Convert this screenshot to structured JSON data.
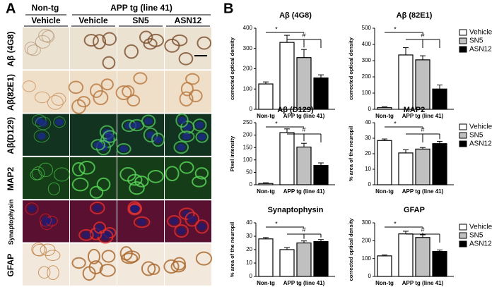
{
  "panel_a": {
    "label": "A",
    "group_headers": [
      "Non-tg",
      "APP tg (line 41)"
    ],
    "column_headers": [
      "Vehicle",
      "Vehicle",
      "SN5",
      "ASN12"
    ],
    "row_labels": [
      "Aβ (4G8)",
      "Aβ(82E1)",
      "Aβ(D129)",
      "MAP2",
      "Synaptophysin",
      "GFAP"
    ]
  },
  "panel_b": {
    "label": "B"
  },
  "chart_data": [
    {
      "type": "bar",
      "title": "Aβ (4G8)",
      "ylabel": "corrected optical density",
      "categories": [
        "Non-tg",
        "APP tg (line 41)"
      ],
      "series": [
        {
          "name": "Vehicle",
          "color": "#ffffff",
          "values": [
            125,
            330
          ],
          "errors": [
            10,
            35
          ]
        },
        {
          "name": "SN5",
          "color": "#c0c0c0",
          "values": [
            null,
            255
          ],
          "errors": [
            null,
            40
          ]
        },
        {
          "name": "ASN12",
          "color": "#000000",
          "values": [
            null,
            155
          ],
          "errors": [
            null,
            15
          ]
        }
      ],
      "ylim": [
        0,
        400
      ],
      "yticks": [
        0,
        100,
        200,
        300,
        400
      ],
      "legend": false,
      "annotations": [
        "*",
        "#"
      ]
    },
    {
      "type": "bar",
      "title": "Aβ (82E1)",
      "ylabel": "corrected optical density",
      "categories": [
        "Non-tg",
        "APP tg (line 41)"
      ],
      "series": [
        {
          "name": "Vehicle",
          "color": "#ffffff",
          "values": [
            10,
            335
          ],
          "errors": [
            5,
            45
          ]
        },
        {
          "name": "SN5",
          "color": "#c0c0c0",
          "values": [
            null,
            305
          ],
          "errors": [
            null,
            25
          ]
        },
        {
          "name": "ASN12",
          "color": "#000000",
          "values": [
            null,
            125
          ],
          "errors": [
            null,
            25
          ]
        }
      ],
      "ylim": [
        0,
        500
      ],
      "yticks": [
        0,
        100,
        200,
        300,
        400,
        500
      ],
      "legend": true,
      "annotations": [
        "*",
        "#"
      ]
    },
    {
      "type": "bar",
      "title": "Aβ (D129)",
      "ylabel": "Pixel intensity",
      "categories": [
        "Non-tg",
        "APP tg (line 41)"
      ],
      "series": [
        {
          "name": "Vehicle",
          "color": "#ffffff",
          "values": [
            5,
            210
          ],
          "errors": [
            3,
            15
          ]
        },
        {
          "name": "SN5",
          "color": "#c0c0c0",
          "values": [
            null,
            152
          ],
          "errors": [
            null,
            15
          ]
        },
        {
          "name": "ASN12",
          "color": "#000000",
          "values": [
            null,
            78
          ],
          "errors": [
            null,
            10
          ]
        }
      ],
      "ylim": [
        0,
        250
      ],
      "yticks": [
        0,
        50,
        100,
        150,
        200,
        250
      ],
      "legend": false,
      "annotations": [
        "*",
        "#"
      ]
    },
    {
      "type": "bar",
      "title": "MAP2",
      "ylabel": "% area of the neuropil",
      "categories": [
        "Non-tg",
        "APP tg (line 41)"
      ],
      "series": [
        {
          "name": "Vehicle",
          "color": "#ffffff",
          "values": [
            28.5,
            20.5
          ],
          "errors": [
            1,
            2
          ]
        },
        {
          "name": "SN5",
          "color": "#c0c0c0",
          "values": [
            null,
            23
          ],
          "errors": [
            null,
            1
          ]
        },
        {
          "name": "ASN12",
          "color": "#000000",
          "values": [
            null,
            26.5
          ],
          "errors": [
            null,
            1.5
          ]
        }
      ],
      "ylim": [
        0,
        40
      ],
      "yticks": [
        0,
        10,
        20,
        30,
        40
      ],
      "legend": true,
      "annotations": [
        "*",
        "#"
      ]
    },
    {
      "type": "bar",
      "title": "Synaptophysin",
      "ylabel": "% area of the neuropil",
      "categories": [
        "Non-tg",
        "APP tg (line 41)"
      ],
      "series": [
        {
          "name": "Vehicle",
          "color": "#ffffff",
          "values": [
            28,
            20
          ],
          "errors": [
            1,
            1.5
          ]
        },
        {
          "name": "SN5",
          "color": "#c0c0c0",
          "values": [
            null,
            25
          ],
          "errors": [
            null,
            1.5
          ]
        },
        {
          "name": "ASN12",
          "color": "#000000",
          "values": [
            null,
            26
          ],
          "errors": [
            null,
            1.5
          ]
        }
      ],
      "ylim": [
        0,
        40
      ],
      "yticks": [
        0,
        10,
        20,
        30,
        40
      ],
      "legend": false,
      "annotations": [
        "*",
        "#"
      ]
    },
    {
      "type": "bar",
      "title": "GFAP",
      "ylabel": "corrected optical density",
      "categories": [
        "Non-tg",
        "APP tg (line 41)"
      ],
      "series": [
        {
          "name": "Vehicle",
          "color": "#ffffff",
          "values": [
            115,
            238
          ],
          "errors": [
            5,
            15
          ]
        },
        {
          "name": "SN5",
          "color": "#c0c0c0",
          "values": [
            null,
            218
          ],
          "errors": [
            null,
            15
          ]
        },
        {
          "name": "ASN12",
          "color": "#000000",
          "values": [
            null,
            140
          ],
          "errors": [
            null,
            8
          ]
        }
      ],
      "ylim": [
        0,
        300
      ],
      "yticks": [
        0,
        100,
        200,
        300
      ],
      "legend": true,
      "annotations": [
        "*",
        "#"
      ]
    }
  ]
}
